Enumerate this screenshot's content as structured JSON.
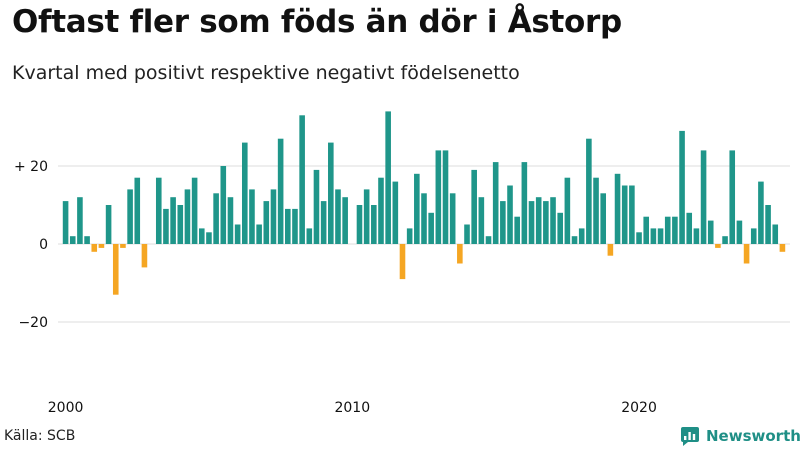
{
  "title": "Oftast fler som föds än dör i Åstorp",
  "subtitle": "Kvartal med positivt respektive negativt födelsenetto",
  "source": "Källa: SCB",
  "brand": "Newsworthy",
  "colors": {
    "positive": "#1f968a",
    "negative": "#f5a623",
    "grid": "#dddddd",
    "text": "#111111",
    "brand": "#1f8f86"
  },
  "chart_data": {
    "type": "bar",
    "unit": "quarter",
    "start": "2000 Q1",
    "xlabel": "",
    "ylabel": "",
    "ylim": [
      -30,
      36
    ],
    "y_ticks": [
      20,
      0,
      -20
    ],
    "y_tick_labels": [
      "+ 20",
      "0",
      "−20"
    ],
    "x_ticks": [
      {
        "label": "2000",
        "index": 0
      },
      {
        "label": "2010",
        "index": 40
      },
      {
        "label": "2020",
        "index": 80
      }
    ],
    "grid": true,
    "legend": "none",
    "values": [
      11,
      2,
      12,
      2,
      -2,
      -1,
      10,
      -13,
      -1,
      14,
      17,
      -6,
      0,
      17,
      9,
      12,
      10,
      14,
      17,
      4,
      3,
      13,
      20,
      12,
      5,
      26,
      14,
      5,
      11,
      14,
      27,
      9,
      9,
      33,
      4,
      19,
      11,
      26,
      14,
      12,
      0,
      10,
      14,
      10,
      17,
      34,
      16,
      -9,
      4,
      18,
      13,
      8,
      24,
      24,
      13,
      -5,
      5,
      19,
      12,
      2,
      21,
      11,
      15,
      7,
      21,
      11,
      12,
      11,
      12,
      8,
      17,
      2,
      4,
      27,
      17,
      13,
      -3,
      18,
      15,
      15,
      3,
      7,
      4,
      4,
      7,
      7,
      29,
      8,
      4,
      24,
      6,
      -1,
      2,
      24,
      6,
      -5,
      4,
      16,
      10,
      5,
      -2
    ]
  }
}
